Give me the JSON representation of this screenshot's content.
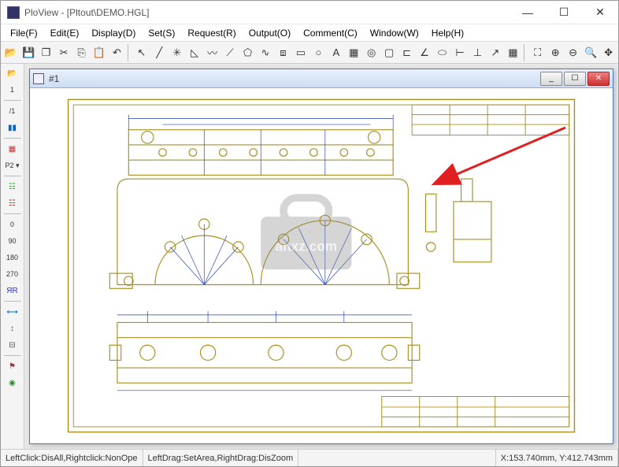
{
  "app": {
    "title": "PloView - [Pltout\\DEMO.HGL]",
    "minimize": "—",
    "maximize": "☐",
    "close": "✕"
  },
  "menu": {
    "items": [
      "File(F)",
      "Edit(E)",
      "Display(D)",
      "Set(S)",
      "Request(R)",
      "Output(O)",
      "Comment(C)",
      "Window(W)",
      "Help(H)"
    ]
  },
  "toolbar": {
    "groups": [
      [
        "open-icon",
        "save-icon",
        "new-icon",
        "cut-icon",
        "copy-icon",
        "paste-icon",
        "undo-icon"
      ],
      [
        "pointer-icon",
        "line-icon",
        "asterisk-icon",
        "triangle-icon",
        "wave-icon",
        "polyline-icon",
        "pentagon-icon",
        "curve-icon",
        "step-icon",
        "rect-icon",
        "circle-icon",
        "text-icon",
        "pattern-icon",
        "target-icon",
        "rect2-icon",
        "dim-icon",
        "angle-icon",
        "ellipse-icon",
        "dimh-icon",
        "dimv-icon",
        "leader-icon",
        "palette-icon"
      ],
      [
        "fit-icon",
        "zoomin-icon",
        "zoomout-icon",
        "zoom-icon",
        "pan-icon"
      ]
    ],
    "glyphs": {
      "open-icon": "📂",
      "save-icon": "💾",
      "new-icon": "❐",
      "cut-icon": "✂",
      "copy-icon": "⎘",
      "paste-icon": "📋",
      "undo-icon": "↶",
      "pointer-icon": "↖",
      "line-icon": "╱",
      "asterisk-icon": "✳",
      "triangle-icon": "◺",
      "wave-icon": "〰",
      "polyline-icon": "⟋",
      "pentagon-icon": "⬠",
      "curve-icon": "∿",
      "step-icon": "⧈",
      "rect-icon": "▭",
      "circle-icon": "○",
      "text-icon": "A",
      "pattern-icon": "▦",
      "target-icon": "◎",
      "rect2-icon": "▢",
      "dim-icon": "⊏",
      "angle-icon": "∠",
      "ellipse-icon": "⬭",
      "dimh-icon": "⊢",
      "dimv-icon": "⊥",
      "leader-icon": "↗",
      "palette-icon": "▦",
      "fit-icon": "⛶",
      "zoomin-icon": "⊕",
      "zoomout-icon": "⊖",
      "zoom-icon": "🔍",
      "pan-icon": "✥"
    }
  },
  "sidebar": {
    "items": [
      {
        "name": "folder-icon",
        "glyph": "📂",
        "type": "icon",
        "color": "#c90"
      },
      {
        "name": "num-1",
        "glyph": "1",
        "type": "text"
      },
      {
        "name": "divider",
        "type": "sep"
      },
      {
        "name": "slash-1",
        "glyph": "/1",
        "type": "text"
      },
      {
        "name": "bars-icon",
        "glyph": "▮▮",
        "type": "icon",
        "color": "#06c"
      },
      {
        "name": "divider",
        "type": "sep"
      },
      {
        "name": "grid-icon",
        "glyph": "▦",
        "type": "icon",
        "color": "#c33"
      },
      {
        "name": "p2",
        "glyph": "P2 ▾",
        "type": "text"
      },
      {
        "name": "divider",
        "type": "sep"
      },
      {
        "name": "layers1-icon",
        "glyph": "☷",
        "type": "icon",
        "color": "#393"
      },
      {
        "name": "layers2-icon",
        "glyph": "☷",
        "type": "icon",
        "color": "#933"
      },
      {
        "name": "divider",
        "type": "sep"
      },
      {
        "name": "angle-0",
        "glyph": "0",
        "type": "text"
      },
      {
        "name": "angle-90",
        "glyph": "90",
        "type": "text"
      },
      {
        "name": "angle-180",
        "glyph": "180",
        "type": "text"
      },
      {
        "name": "angle-270",
        "glyph": "270",
        "type": "text"
      },
      {
        "name": "mirror-icon",
        "glyph": "ЯR",
        "type": "icon",
        "color": "#33c"
      },
      {
        "name": "divider",
        "type": "sep"
      },
      {
        "name": "dimh2-icon",
        "glyph": "⟷",
        "type": "icon",
        "color": "#06c"
      },
      {
        "name": "dimv2-icon",
        "glyph": "↕",
        "type": "icon",
        "color": "#06c"
      },
      {
        "name": "dimtool-icon",
        "glyph": "⊟",
        "type": "icon",
        "color": "#555"
      },
      {
        "name": "divider",
        "type": "sep"
      },
      {
        "name": "flag-icon",
        "glyph": "⚑",
        "type": "icon",
        "color": "#a33"
      },
      {
        "name": "target2-icon",
        "glyph": "◉",
        "type": "icon",
        "color": "#383"
      }
    ]
  },
  "child": {
    "title": "#1",
    "min": "_",
    "max": "☐",
    "close": "✕"
  },
  "drawing": {
    "border_color": "#a89020",
    "line_color": "#2040c0",
    "dim_color": "#2040c0",
    "watermark": "anxz.com"
  },
  "status": {
    "left": "LeftClick:DisAll,Rightclick:NonOpe",
    "mid": "LeftDrag:SetArea,RightDrag:DisZoom",
    "coords": "X:153.740mm, Y:412.743mm"
  },
  "annotation": {
    "arrow_color": "#e02020"
  }
}
